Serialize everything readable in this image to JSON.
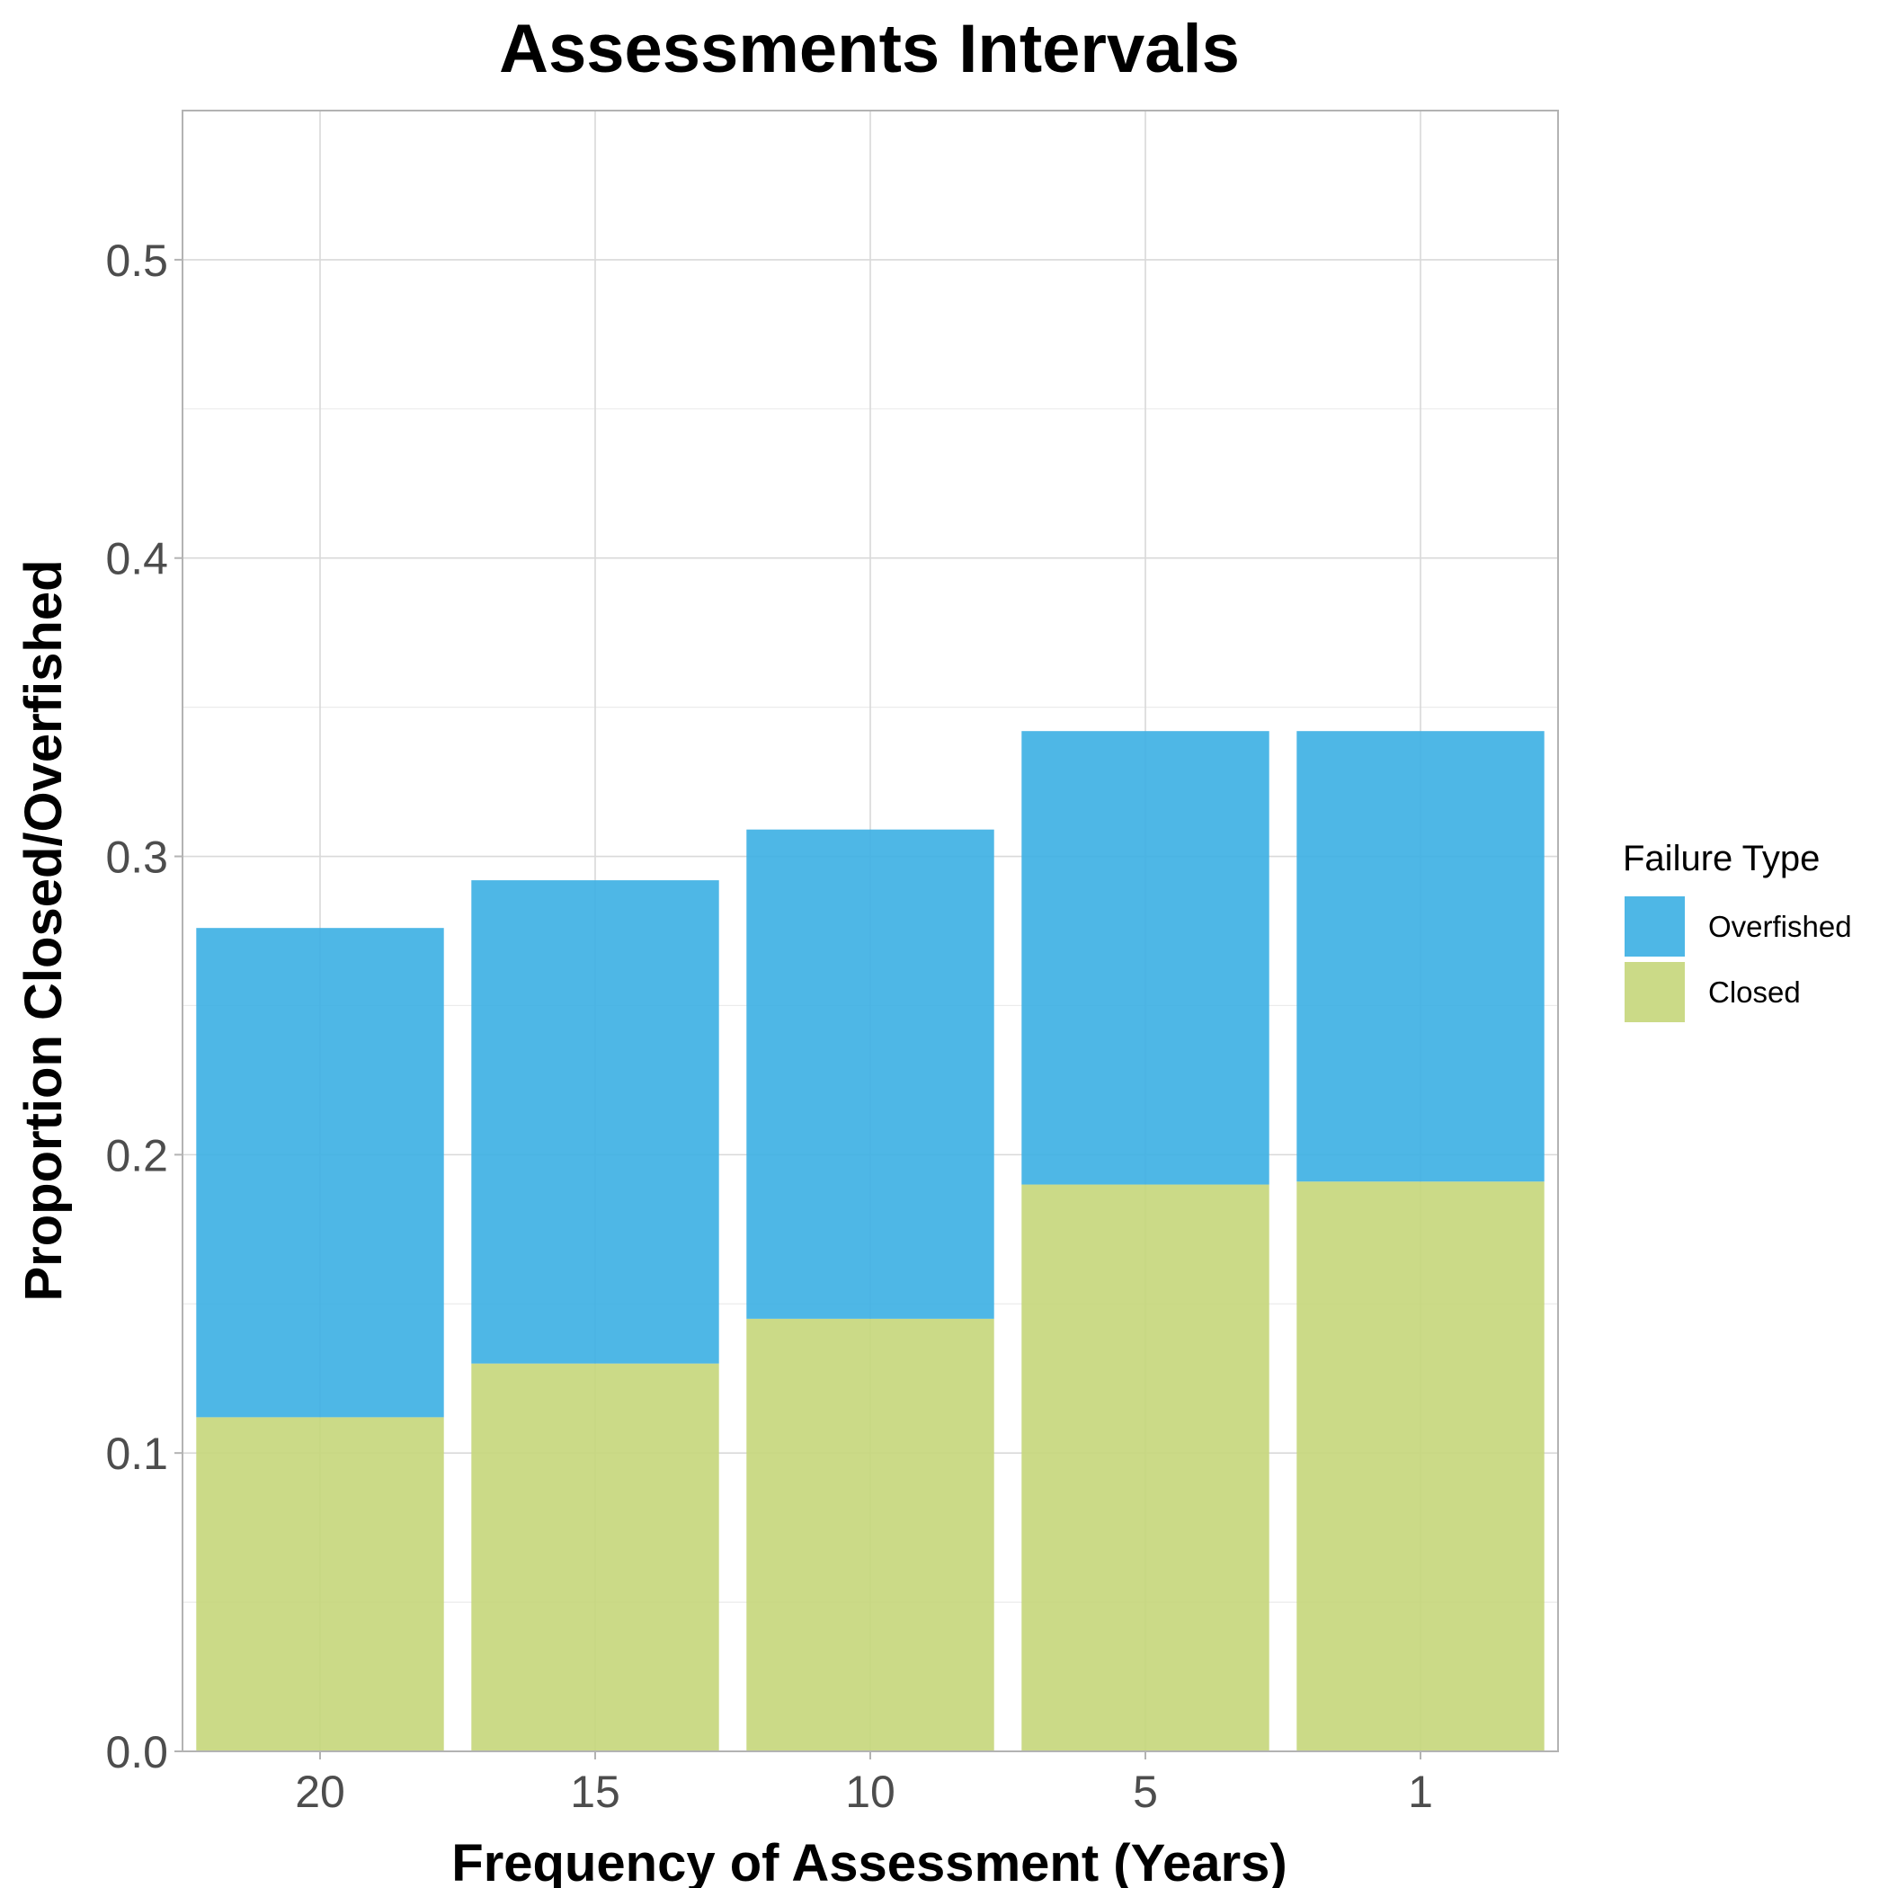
{
  "chart_data": {
    "type": "bar",
    "stacked": true,
    "title": "Assessments Intervals",
    "xlabel": "Frequency of Assessment (Years)",
    "ylabel": "Proportion Closed/Overfished",
    "categories": [
      "20",
      "15",
      "10",
      "5",
      "1"
    ],
    "ylim": [
      0,
      0.55
    ],
    "yticks": [
      "0.0",
      "0.1",
      "0.2",
      "0.3",
      "0.4",
      "0.5"
    ],
    "grid": true,
    "legend": {
      "title": "Failure Type",
      "placement": "right",
      "entries": [
        "Overfished",
        "Closed"
      ]
    },
    "series": [
      {
        "name": "Closed",
        "color": "#c5d67a",
        "values": [
          0.112,
          0.13,
          0.145,
          0.19,
          0.191
        ]
      },
      {
        "name": "Overfished",
        "color": "#3bafe3",
        "values": [
          0.164,
          0.162,
          0.164,
          0.152,
          0.151
        ]
      }
    ]
  }
}
